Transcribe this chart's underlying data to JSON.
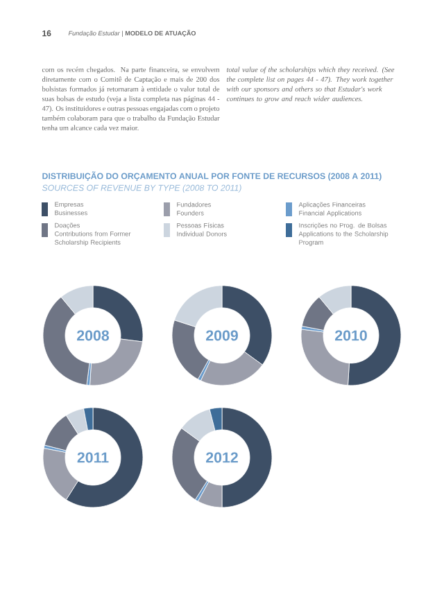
{
  "chart_data": [
    {
      "type": "donut",
      "title": "2008",
      "subtitle": "DISTRIBUIÇÃO DO ORÇAMENTO ANUAL POR FONTE DE RECURSOS (2008 A 2011)",
      "legend_title": "SOURCES OF REVENUE BY TYPE (2008 TO 2011)",
      "legend": "top",
      "annotations": [
        "16",
        "*Fundação Estudar* | **MODELO DE ATUAÇÃO**",
        "com os recém chegados. Na parte financeira, se envolvem diretamente com o Comitê de Captação e mais de 200 dos bolsistas formados já retornaram à entidade o valor total de suas bolsas de estudo (veja a lista completa nas páginas 44 - 47). Os instituidores e outras pessoas engajadas com o projeto também colaboram para que o trabalho da Fundação Estudar tenha um alcance cada vez maior.",
        "total value of the scholarships which they received. (See the complete list on pages 44 - 47). They work together with our sponsors and others so that Estudar's work continues to grow and reach wider audiences."
      ],
      "categories": [
        "Empresas\nBusinesses",
        "Fundadores\nFounders",
        "Aplicações Financeiras\nFinancial Applications",
        "Doações\nContributions from Former\nScholarship Recipients",
        "Pessoas Físicas\nIndividual Donors",
        "Inscrições no Prog. de Bolsas\nApplications to the Scholarship\nProgram"
      ],
      "values": [
        27,
        24,
        1,
        37,
        11,
        0
      ],
      "colors": [
        "#3d4f66",
        "#9b9eab",
        "#6b9ccc",
        "#6f7585",
        "#ccd5df",
        "#3e6d99"
      ]
    },
    {
      "type": "donut",
      "title": "2009",
      "categories": [
        null,
        null,
        null,
        null,
        null,
        null
      ],
      "values": [
        35,
        22,
        1,
        22,
        20,
        0
      ],
      "colors": [
        "#3d4f66",
        "#9b9eab",
        "#6b9ccc",
        "#6f7585",
        "#ccd5df",
        "#3e6d99"
      ]
    },
    {
      "type": "donut",
      "title": "2010",
      "categories": [
        null,
        null,
        null,
        null,
        null,
        null
      ],
      "values": [
        51,
        26,
        1,
        11,
        11,
        0
      ],
      "colors": [
        "#3d4f66",
        "#9b9eab",
        "#6b9ccc",
        "#6f7585",
        "#ccd5df",
        "#3e6d99"
      ]
    },
    {
      "type": "donut",
      "title": "2011",
      "categories": [
        null,
        null,
        null,
        null,
        null,
        null
      ],
      "values": [
        59,
        19,
        1,
        12,
        6,
        3
      ],
      "colors": [
        "#3d4f66",
        "#9b9eab",
        "#6b9ccc",
        "#6f7585",
        "#ccd5df",
        "#3e6d99"
      ]
    },
    {
      "type": "donut",
      "title": "2012",
      "categories": [
        null,
        null,
        null,
        null,
        null,
        null
      ],
      "values": [
        50,
        8,
        1,
        26,
        11,
        4
      ],
      "colors": [
        "#3d4f66",
        "#9b9eab",
        "#6b9ccc",
        "#6f7585",
        "#ccd5df",
        "#3e6d99"
      ]
    }
  ]
}
